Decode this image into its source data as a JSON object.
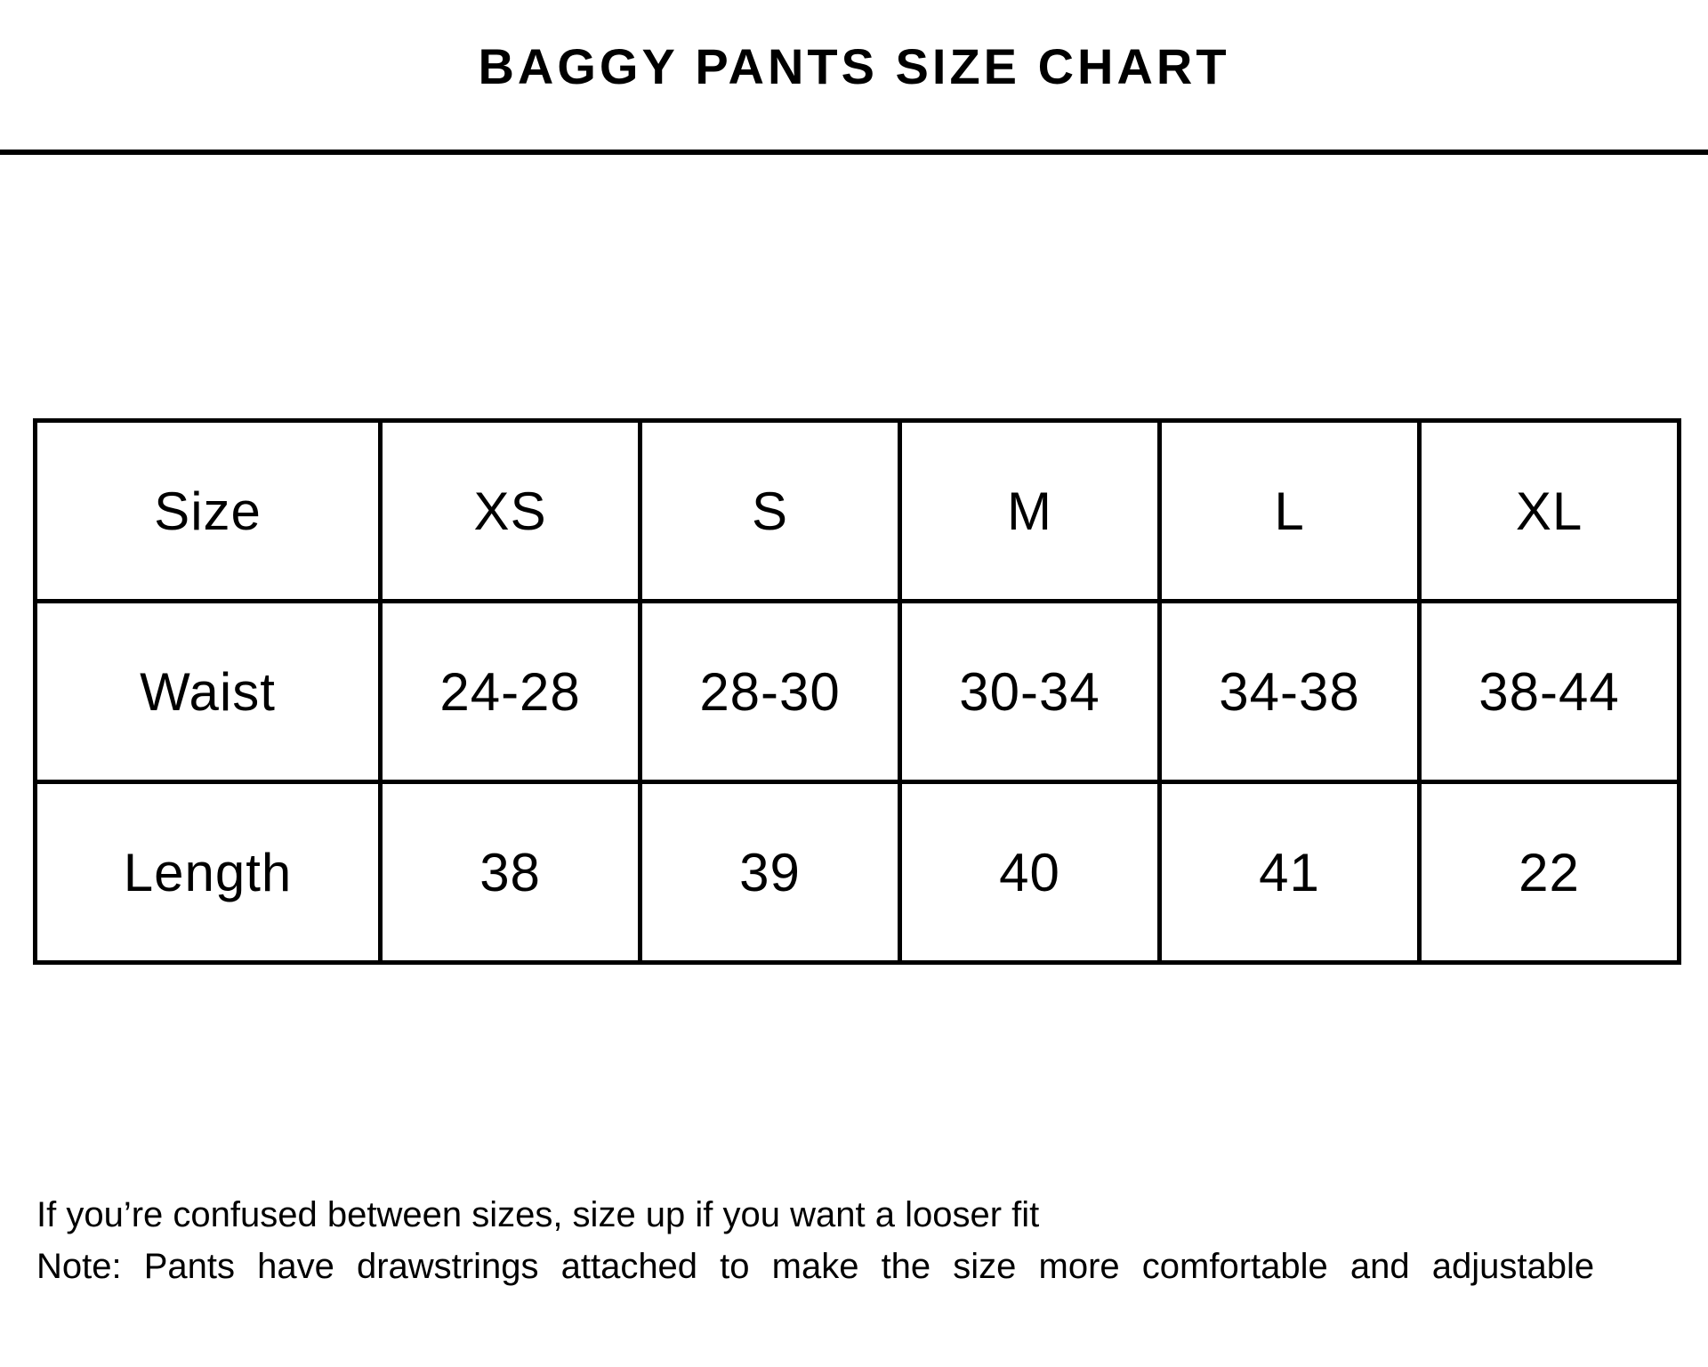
{
  "chart_data": {
    "type": "table",
    "title": "BAGGY PANTS SIZE CHART",
    "columns": [
      "Size",
      "XS",
      "S",
      "M",
      "L",
      "XL"
    ],
    "rows": [
      {
        "label": "Waist",
        "values": [
          "24-28",
          "28-30",
          "30-34",
          "34-38",
          "38-44"
        ]
      },
      {
        "label": "Length",
        "values": [
          "38",
          "39",
          "40",
          "41",
          "22"
        ]
      }
    ]
  },
  "notes": [
    "If you’re confused between sizes, size up if you want a looser fit",
    "Note: Pants have drawstrings attached to make the size more comfortable and adjustable"
  ],
  "colors": {
    "background": "#ffffff",
    "text": "#000000",
    "border": "#000000"
  }
}
